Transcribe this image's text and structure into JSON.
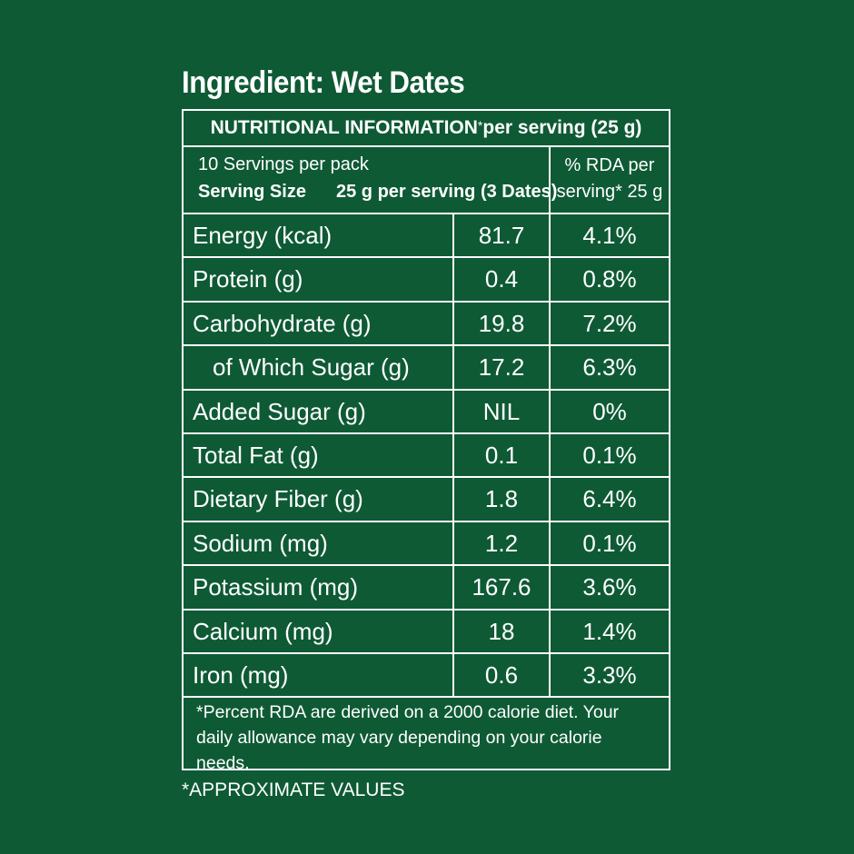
{
  "title": "Ingredient: Wet Dates",
  "header": {
    "bold": "NUTRITIONAL INFORMATION",
    "star": "*",
    "rest": " per serving (25 g)"
  },
  "info": {
    "servings_per_pack": "10 Servings per pack",
    "serving_size_label": "Serving Size",
    "serving_size_value": "25 g per serving (3 Dates)",
    "rda_header_line1": "% RDA per",
    "rda_header_line2": "serving* 25 g"
  },
  "rows": [
    {
      "name": "Energy (kcal)",
      "value": "81.7",
      "rda": "4.1%"
    },
    {
      "name": "Protein (g)",
      "value": "0.4",
      "rda": "0.8%"
    },
    {
      "name": "Carbohydrate (g)",
      "value": "19.8",
      "rda": "7.2%"
    },
    {
      "name": "of Which Sugar (g)",
      "value": "17.2",
      "rda": "6.3%"
    },
    {
      "name": "Added Sugar (g)",
      "value": "NIL",
      "rda": "0%"
    },
    {
      "name": "Total Fat (g)",
      "value": "0.1",
      "rda": "0.1%"
    },
    {
      "name": "Dietary Fiber (g)",
      "value": "1.8",
      "rda": "6.4%"
    },
    {
      "name": "Sodium (mg)",
      "value": "1.2",
      "rda": "0.1%"
    },
    {
      "name": "Potassium (mg)",
      "value": "167.6",
      "rda": "3.6%"
    },
    {
      "name": "Calcium (mg)",
      "value": "18",
      "rda": "1.4%"
    },
    {
      "name": "Iron (mg)",
      "value": "0.6",
      "rda": "3.3%"
    }
  ],
  "footnote": "*Percent RDA are derived on a 2000 calorie diet. Your daily allowance may vary depending on your calorie needs.",
  "approximate_note": "*APPROXIMATE VALUES",
  "colors": {
    "background": "#0e5a35",
    "text": "#ffffff"
  }
}
